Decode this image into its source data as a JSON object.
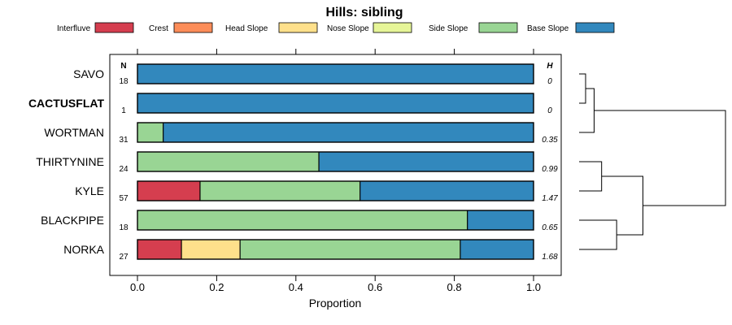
{
  "chart_data": {
    "type": "bar",
    "stacked": true,
    "orientation": "horizontal",
    "title": "Hills: sibling",
    "xlabel": "Proportion",
    "ylabel": "",
    "xlim": [
      0,
      1
    ],
    "xticks": [
      "0.0",
      "0.2",
      "0.4",
      "0.6",
      "0.8",
      "1.0"
    ],
    "xtick_values": [
      0,
      0.2,
      0.4,
      0.6,
      0.8,
      1.0
    ],
    "n_header": "N",
    "h_header": "H",
    "legend_position": "top",
    "series": [
      {
        "name": "Interfluve",
        "color": "#d53e4f"
      },
      {
        "name": "Crest",
        "color": "#fc8d59"
      },
      {
        "name": "Head Slope",
        "color": "#fee08b"
      },
      {
        "name": "Nose Slope",
        "color": "#e6f598"
      },
      {
        "name": "Side Slope",
        "color": "#99d594"
      },
      {
        "name": "Base Slope",
        "color": "#3288bd"
      }
    ],
    "categories": [
      {
        "name": "SAVO",
        "bold": false,
        "n": "18",
        "h": "0",
        "values": [
          0,
          0,
          0,
          0,
          0,
          1.0
        ]
      },
      {
        "name": "CACTUSFLAT",
        "bold": true,
        "n": "1",
        "h": "0",
        "values": [
          0,
          0,
          0,
          0,
          0,
          1.0
        ]
      },
      {
        "name": "WORTMAN",
        "bold": false,
        "n": "31",
        "h": "0.35",
        "values": [
          0,
          0,
          0,
          0,
          0.065,
          0.935
        ]
      },
      {
        "name": "THIRTYNINE",
        "bold": false,
        "n": "24",
        "h": "0.99",
        "values": [
          0,
          0,
          0,
          0,
          0.458,
          0.542
        ]
      },
      {
        "name": "KYLE",
        "bold": false,
        "n": "57",
        "h": "1.47",
        "values": [
          0.158,
          0,
          0,
          0,
          0.404,
          0.438
        ]
      },
      {
        "name": "BLACKPIPE",
        "bold": false,
        "n": "18",
        "h": "0.65",
        "values": [
          0,
          0,
          0,
          0,
          0.833,
          0.167
        ]
      },
      {
        "name": "NORKA",
        "bold": false,
        "n": "27",
        "h": "1.68",
        "values": [
          0.111,
          0,
          0.148,
          0,
          0.556,
          0.185
        ]
      }
    ],
    "dendrogram": {
      "merges": [
        {
          "left": "SAVO",
          "right": "CACTUSFLAT",
          "height": 0.0
        },
        {
          "left": "m0",
          "right": "WORTMAN",
          "height": 0.04
        },
        {
          "left": "THIRTYNINE",
          "right": "KYLE",
          "height": 0.06
        },
        {
          "left": "BLACKPIPE",
          "right": "NORKA",
          "height": 0.1
        },
        {
          "left": "m2",
          "right": "m3",
          "height": 0.17
        },
        {
          "left": "m1",
          "right": "m4",
          "height": 0.39
        }
      ]
    }
  }
}
